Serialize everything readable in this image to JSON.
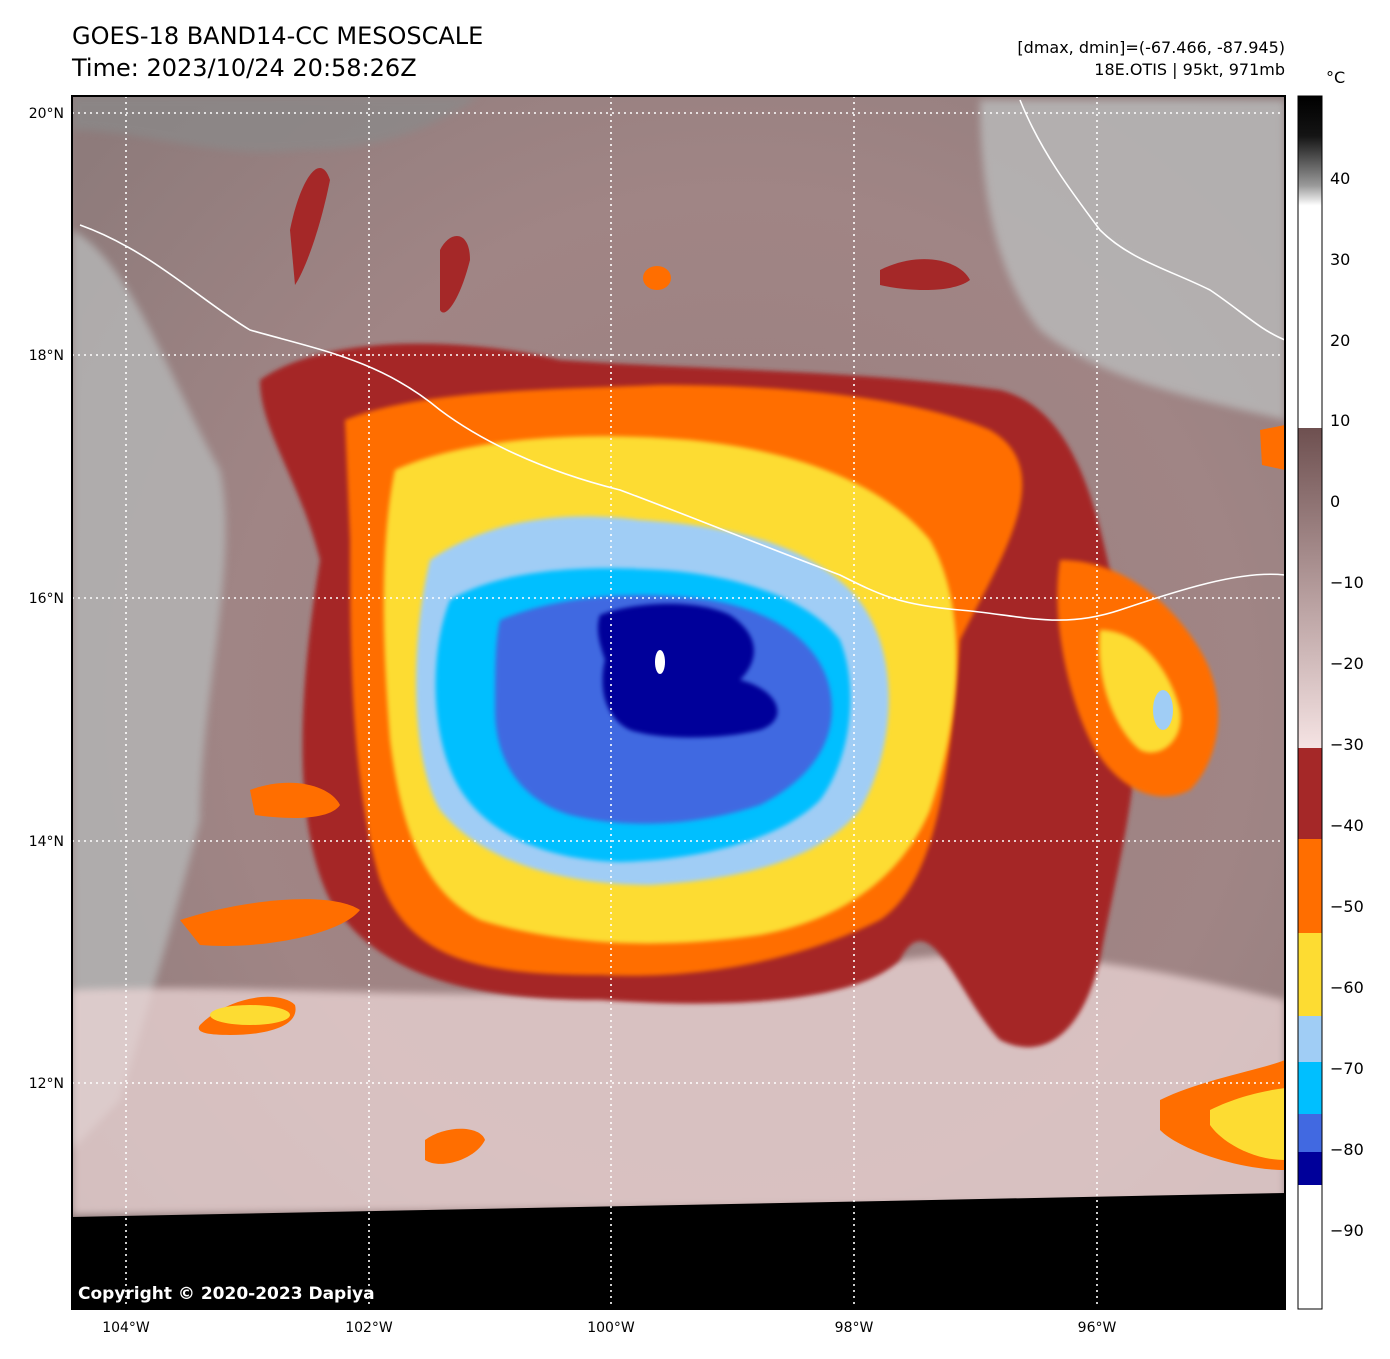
{
  "header": {
    "title_line1": "GOES-18 BAND14-CC MESOSCALE",
    "title_line2": "Time: 2023/10/24 20:58:26Z",
    "dmax_dmin": "[dmax, dmin]=(-67.466, -87.945)",
    "storm_info": "18E.OTIS | 95kt, 971mb"
  },
  "map": {
    "lat_labels": [
      "20°N",
      "18°N",
      "16°N",
      "14°N",
      "12°N"
    ],
    "lon_labels": [
      "104°W",
      "102°W",
      "100°W",
      "98°W",
      "96°W"
    ],
    "gridlines": "dotted white",
    "copyright": "Copyright © 2020-2023 Dapiya"
  },
  "colorbar": {
    "unit": "°C",
    "tick_labels": [
      "40",
      "30",
      "20",
      "10",
      "0",
      "−10",
      "−20",
      "−30",
      "−40",
      "−50",
      "−60",
      "−70",
      "−80",
      "−90"
    ],
    "colors": {
      "dark_blue": "#00009a",
      "royal_blue": "#4169e1",
      "deep_sky_blue": "#00bfff",
      "light_blue": "#a0cdf5",
      "yellow": "#fddc32",
      "orange": "#ff6e00",
      "dark_red": "#a52828",
      "warm_gray_brown": "#8c6c6c",
      "pale_pink": "#f0dcdc"
    }
  }
}
